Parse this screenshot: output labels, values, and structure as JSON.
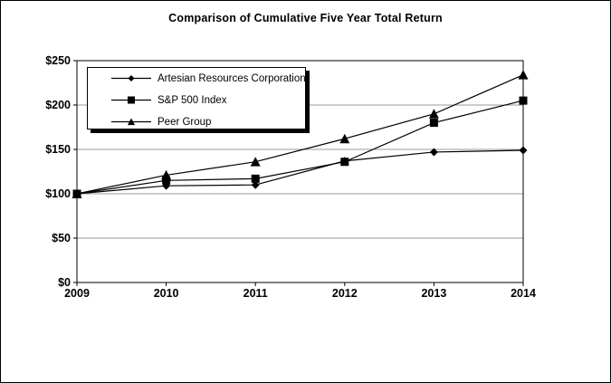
{
  "figure": {
    "title": "Comparison of Cumulative Five Year Total Return"
  },
  "chart_data": {
    "type": "line",
    "title": "Comparison of Cumulative Five Year Total Return",
    "categories": [
      "2009",
      "2010",
      "2011",
      "2012",
      "2013",
      "2014"
    ],
    "series": [
      {
        "name": "Artesian Resources Corporation",
        "marker": "diamond",
        "color": "#000000",
        "values": [
          100,
          109,
          110,
          137,
          147,
          149
        ]
      },
      {
        "name": "S&P 500 Index",
        "marker": "square",
        "color": "#000000",
        "values": [
          100,
          115,
          117,
          136,
          180,
          205
        ]
      },
      {
        "name": "Peer Group",
        "marker": "triangle",
        "color": "#000000",
        "values": [
          100,
          121,
          136,
          162,
          190,
          234
        ]
      }
    ],
    "xlabel": "",
    "ylabel": "",
    "xlim": [
      2009,
      2014
    ],
    "ylim": [
      0,
      250
    ],
    "y_ticks": [
      0,
      50,
      100,
      150,
      200,
      250
    ],
    "y_tick_labels": [
      "$0",
      "$50",
      "$100",
      "$150",
      "$200",
      "$250"
    ],
    "grid": "horizontal-interior-only",
    "legend_position": "top-left-inside",
    "colors": {
      "line": "#000000",
      "gridline": "#999999",
      "axis": "#000000",
      "marker": "#000000",
      "background": "#ffffff",
      "text": "#000000"
    }
  }
}
